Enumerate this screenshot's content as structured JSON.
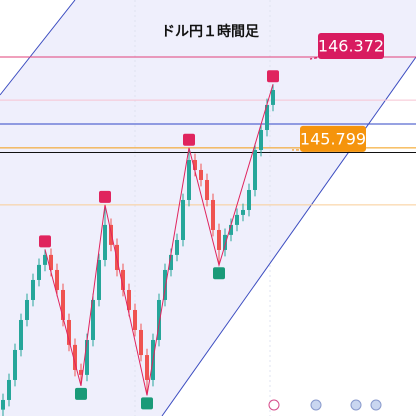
{
  "chart_data": {
    "type": "candlestick",
    "title": "ドル円１時間足",
    "ylim": [
      144.11,
      146.731
    ],
    "up_color": "#26a69a",
    "down_color": "#ef5350",
    "open": [
      144.15,
      144.211,
      144.337,
      144.526,
      144.715,
      144.841,
      144.967,
      145.062,
      145.125,
      145.03,
      144.904,
      144.715,
      144.558,
      144.4,
      144.369,
      144.589,
      144.841,
      145.093,
      145.314,
      145.188,
      145.03,
      144.904,
      144.778,
      144.652,
      144.494,
      144.337,
      144.589,
      144.841,
      145.03,
      145.125,
      145.219,
      145.471,
      145.723,
      145.66,
      145.597,
      145.471,
      145.282,
      145.156,
      145.251,
      145.314,
      145.377,
      145.408,
      145.534,
      145.786,
      145.912,
      146.07
    ],
    "high": [
      144.251,
      144.377,
      144.566,
      144.755,
      144.881,
      145.007,
      145.102,
      145.16,
      145.165,
      145.07,
      144.944,
      144.755,
      144.598,
      144.44,
      144.629,
      144.881,
      145.133,
      145.44,
      145.354,
      145.228,
      145.07,
      144.944,
      144.818,
      144.692,
      144.534,
      144.629,
      144.881,
      145.07,
      145.165,
      145.259,
      145.511,
      145.8,
      145.763,
      145.7,
      145.637,
      145.511,
      145.322,
      145.291,
      145.354,
      145.417,
      145.448,
      145.574,
      145.826,
      145.952,
      146.11,
      146.2
    ],
    "low": [
      144.11,
      144.171,
      144.297,
      144.486,
      144.675,
      144.801,
      144.927,
      145.022,
      144.99,
      144.864,
      144.675,
      144.518,
      144.36,
      144.3,
      144.329,
      144.549,
      144.801,
      145.053,
      145.148,
      144.99,
      144.864,
      144.738,
      144.612,
      144.454,
      144.24,
      144.297,
      144.549,
      144.801,
      144.99,
      145.085,
      145.179,
      145.431,
      145.62,
      145.557,
      145.431,
      145.242,
      145.06,
      145.116,
      145.211,
      145.274,
      145.337,
      145.368,
      145.494,
      145.746,
      145.872,
      146.03
    ],
    "close": [
      144.211,
      144.337,
      144.526,
      144.715,
      144.841,
      144.967,
      145.062,
      145.125,
      145.03,
      144.904,
      144.715,
      144.558,
      144.4,
      144.369,
      144.589,
      144.841,
      145.093,
      145.314,
      145.188,
      145.03,
      144.904,
      144.778,
      144.652,
      144.494,
      144.337,
      144.589,
      144.841,
      145.03,
      145.125,
      145.219,
      145.471,
      145.723,
      145.66,
      145.597,
      145.471,
      145.282,
      145.156,
      145.251,
      145.314,
      145.377,
      145.408,
      145.534,
      145.786,
      145.912,
      146.07,
      146.164
    ],
    "zigzag": {
      "index": [
        7,
        13,
        17,
        24,
        31,
        36,
        45
      ],
      "values": [
        145.16,
        144.3,
        145.44,
        144.24,
        145.8,
        145.06,
        146.2
      ],
      "high_color": "#e0245e",
      "low_color": "#1a9a78"
    },
    "hlines": [
      {
        "value": 146.372,
        "color": "#e0407a"
      },
      {
        "value": 146.1,
        "color": "#f6c3d2"
      },
      {
        "value": 145.95,
        "color": "#2f45c6"
      },
      {
        "value": 145.799,
        "color": "#f39c12"
      },
      {
        "value": 145.77,
        "color": "#111111"
      },
      {
        "value": 145.44,
        "color": "#f9cd96"
      }
    ],
    "price_labels": [
      {
        "value": 146.372,
        "color": "#d81b60"
      },
      {
        "value": 145.799,
        "color": "#f5940c"
      }
    ]
  }
}
